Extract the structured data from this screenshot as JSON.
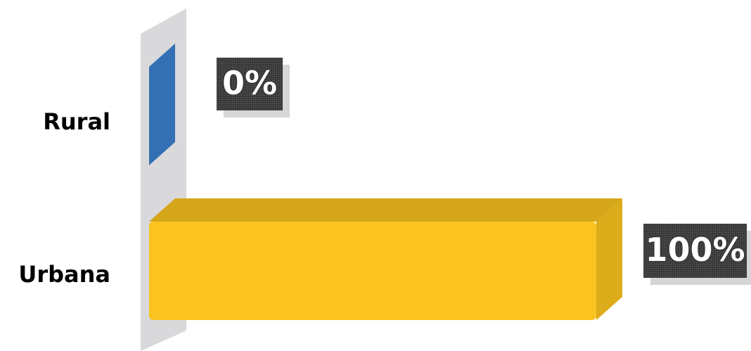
{
  "chart_data": {
    "type": "bar",
    "orientation": "horizontal",
    "categories": [
      "Rural",
      "Urbana"
    ],
    "series": [
      {
        "colors": [
          "#3a7fcb",
          "#fbc31f"
        ],
        "values": [
          0,
          100
        ],
        "value_labels": [
          "0%",
          "100%"
        ]
      }
    ],
    "xlim": [
      0,
      100
    ]
  }
}
